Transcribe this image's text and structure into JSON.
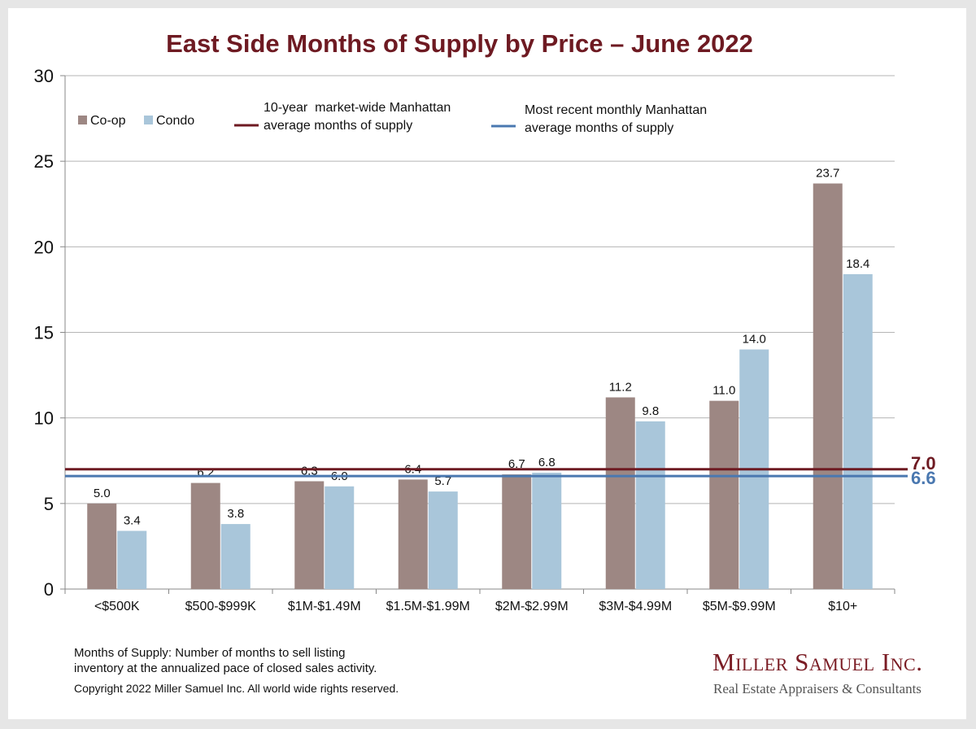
{
  "title": "East Side Months of Supply by Price – June 2022",
  "legend": {
    "coop": "Co-op",
    "condo": "Condo",
    "ten_year_line1": "10-year  market-wide Manhattan",
    "ten_year_line2": "average months of supply",
    "recent_line1": "Most recent monthly Manhattan",
    "recent_line2": "average months of supply"
  },
  "footnote": {
    "line1": "Months of Supply: Number of months to sell listing",
    "line2": "inventory at the annualized pace of closed sales activity.",
    "copyright": "Copyright 2022 Miller Samuel Inc.  All world wide rights reserved."
  },
  "logo": {
    "name": "Miller Samuel Inc.",
    "tagline": "Real Estate Appraisers & Consultants"
  },
  "chart_data": {
    "type": "bar",
    "title": "East Side Months of Supply by Price – June 2022",
    "categories": [
      "<$500K",
      "$500-$999K",
      "$1M-$1.49M",
      "$1.5M-$1.99M",
      "$2M-$2.99M",
      "$3M-$4.99M",
      "$5M-$9.99M",
      "$10+"
    ],
    "series": [
      {
        "name": "Co-op",
        "values": [
          5.0,
          6.2,
          6.3,
          6.4,
          6.7,
          11.2,
          11.0,
          23.7
        ],
        "color": "#9d8783"
      },
      {
        "name": "Condo",
        "values": [
          3.4,
          3.8,
          6.0,
          5.7,
          6.8,
          9.8,
          14.0,
          18.4
        ],
        "color": "#a9c6da"
      }
    ],
    "reference_lines": [
      {
        "name": "10-year  market-wide Manhattan average months of supply",
        "value": 7.0,
        "label": "7.0",
        "color": "#6e1a22"
      },
      {
        "name": "Most recent monthly Manhattan average months of supply",
        "value": 6.6,
        "label": "6.6",
        "color": "#4a78b0"
      }
    ],
    "ylim": [
      0,
      30
    ],
    "yticks": [
      0,
      5,
      10,
      15,
      20,
      25,
      30
    ],
    "grid": true,
    "legend_position": "top-left"
  }
}
